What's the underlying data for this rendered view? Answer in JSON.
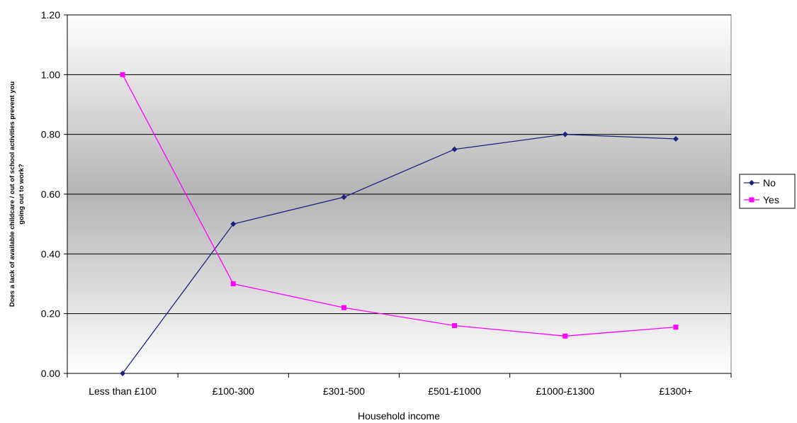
{
  "chart_data": {
    "type": "line",
    "xlabel": "Household income",
    "ylabel_lines": [
      "Does a lack of available childcare / out of school activities prevent you",
      "going out to work?"
    ],
    "categories": [
      "Less than £100",
      "£100-300",
      "£301-500",
      "£501-£1000",
      "£1000-£1300",
      "£1300+"
    ],
    "y_ticks": [
      "0.00",
      "0.20",
      "0.40",
      "0.60",
      "0.80",
      "1.00",
      "1.20"
    ],
    "ylim": [
      0,
      1.2
    ],
    "grid": "horizontal",
    "legend_position": "right",
    "series": [
      {
        "name": "No",
        "color": "#1a237e",
        "marker": "diamond",
        "values": [
          0.0,
          0.5,
          0.59,
          0.75,
          0.8,
          0.785
        ]
      },
      {
        "name": "Yes",
        "color": "#ff00ff",
        "marker": "square",
        "values": [
          1.0,
          0.3,
          0.22,
          0.16,
          0.125,
          0.155
        ]
      }
    ]
  }
}
